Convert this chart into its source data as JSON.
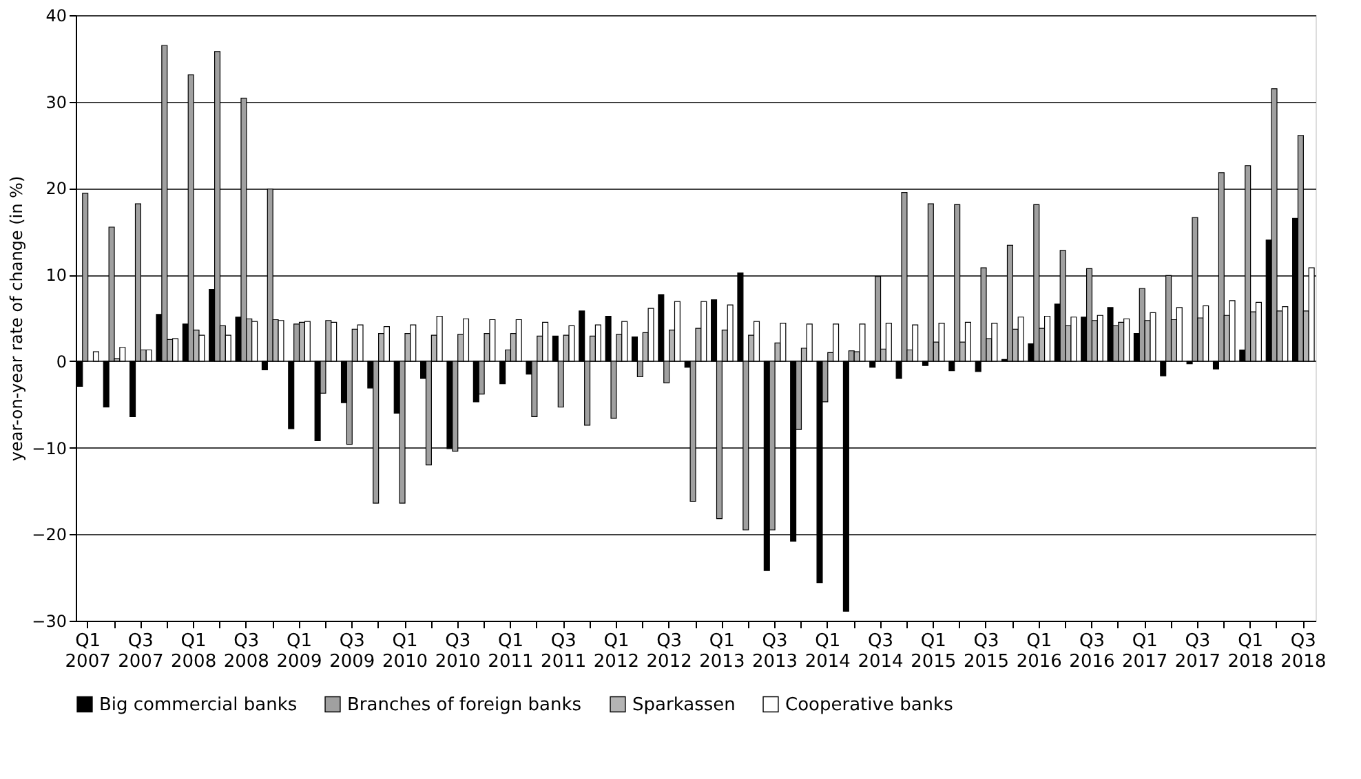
{
  "chart_data": {
    "type": "bar",
    "ylabel": "year-on-year rate of change (in %)",
    "categories": [
      "Q1 2007",
      null,
      "Q3 2007",
      null,
      "Q1 2008",
      null,
      "Q3 2008",
      null,
      "Q1 2009",
      null,
      "Q3 2009",
      null,
      "Q1 2010",
      null,
      "Q3 2010",
      null,
      "Q1 2011",
      null,
      "Q3 2011",
      null,
      "Q1 2012",
      null,
      "Q3 2012",
      null,
      "Q1 2013",
      null,
      "Q3 2013",
      null,
      "Q1 2014",
      null,
      "Q3 2014",
      null,
      "Q1 2015",
      null,
      "Q3 2015",
      null,
      "Q1 2016",
      null,
      "Q3 2016",
      null,
      "Q1 2017",
      null,
      "Q3 2017",
      null,
      "Q1 2018",
      null,
      "Q3 2018"
    ],
    "series": [
      {
        "name": "Big commercial banks",
        "color": "#000000",
        "values": [
          -2.9,
          -5.3,
          -6.4,
          5.4,
          4.3,
          8.3,
          5.1,
          -1.0,
          -7.8,
          -9.2,
          -4.8,
          -3.1,
          -6.0,
          -2.0,
          -10.1,
          -4.7,
          -2.6,
          -1.5,
          2.9,
          5.8,
          5.2,
          2.8,
          7.7,
          -0.7,
          7.1,
          10.2,
          -24.2,
          -20.8,
          -25.6,
          -28.9,
          -0.7,
          -2.0,
          -0.5,
          -1.1,
          -1.2,
          0.2,
          2.0,
          6.6,
          5.1,
          6.2,
          3.2,
          -1.7,
          -0.3,
          -0.9,
          1.3,
          14.0,
          16.5
        ]
      },
      {
        "name": "Branches of foreign banks",
        "color": "#a0a0a0",
        "values": [
          19.4,
          15.5,
          18.2,
          36.5,
          33.1,
          35.8,
          30.4,
          19.9,
          4.3,
          -3.7,
          -9.6,
          -16.4,
          -16.4,
          -12.0,
          -10.4,
          -3.8,
          1.3,
          -6.4,
          -5.3,
          -7.4,
          -6.6,
          -1.8,
          -2.5,
          -16.2,
          -18.2,
          -19.5,
          -19.5,
          -7.9,
          -4.7,
          1.2,
          9.8,
          19.5,
          18.2,
          18.1,
          10.8,
          13.4,
          18.1,
          12.8,
          10.7,
          4.1,
          8.4,
          9.9,
          16.6,
          21.8,
          22.6,
          31.5,
          26.1
        ]
      },
      {
        "name": "Sparkassen",
        "color": "#b4b4b4",
        "values": [
          null,
          0.3,
          1.3,
          2.5,
          3.6,
          4.1,
          4.9,
          4.8,
          4.5,
          4.7,
          3.7,
          3.2,
          3.2,
          3.0,
          3.1,
          3.2,
          3.2,
          2.9,
          3.0,
          2.9,
          3.1,
          3.3,
          3.6,
          3.8,
          3.6,
          3.0,
          2.1,
          1.5,
          1.0,
          1.1,
          1.4,
          1.3,
          2.2,
          2.2,
          2.6,
          3.7,
          3.8,
          4.1,
          4.7,
          4.5,
          4.7,
          4.8,
          5.0,
          5.3,
          5.7,
          5.8,
          5.8
        ]
      },
      {
        "name": "Cooperative banks",
        "color": "#ffffff",
        "values": [
          1.1,
          1.6,
          1.3,
          2.6,
          3.0,
          3.0,
          4.6,
          4.7,
          4.6,
          4.5,
          4.2,
          4.0,
          4.2,
          5.2,
          4.9,
          4.8,
          4.8,
          4.5,
          4.1,
          4.2,
          4.6,
          6.1,
          6.9,
          6.9,
          6.5,
          4.6,
          4.4,
          4.3,
          4.3,
          4.3,
          4.4,
          4.2,
          4.4,
          4.5,
          4.4,
          5.1,
          5.2,
          5.1,
          5.3,
          4.9,
          5.6,
          6.2,
          6.4,
          7.0,
          6.8,
          6.3,
          10.8
        ]
      }
    ],
    "ylim": [
      -30,
      40
    ],
    "yticks": [
      -30,
      -20,
      -10,
      0,
      10,
      20,
      30,
      40
    ],
    "grid": "y",
    "legend": "bottom"
  }
}
